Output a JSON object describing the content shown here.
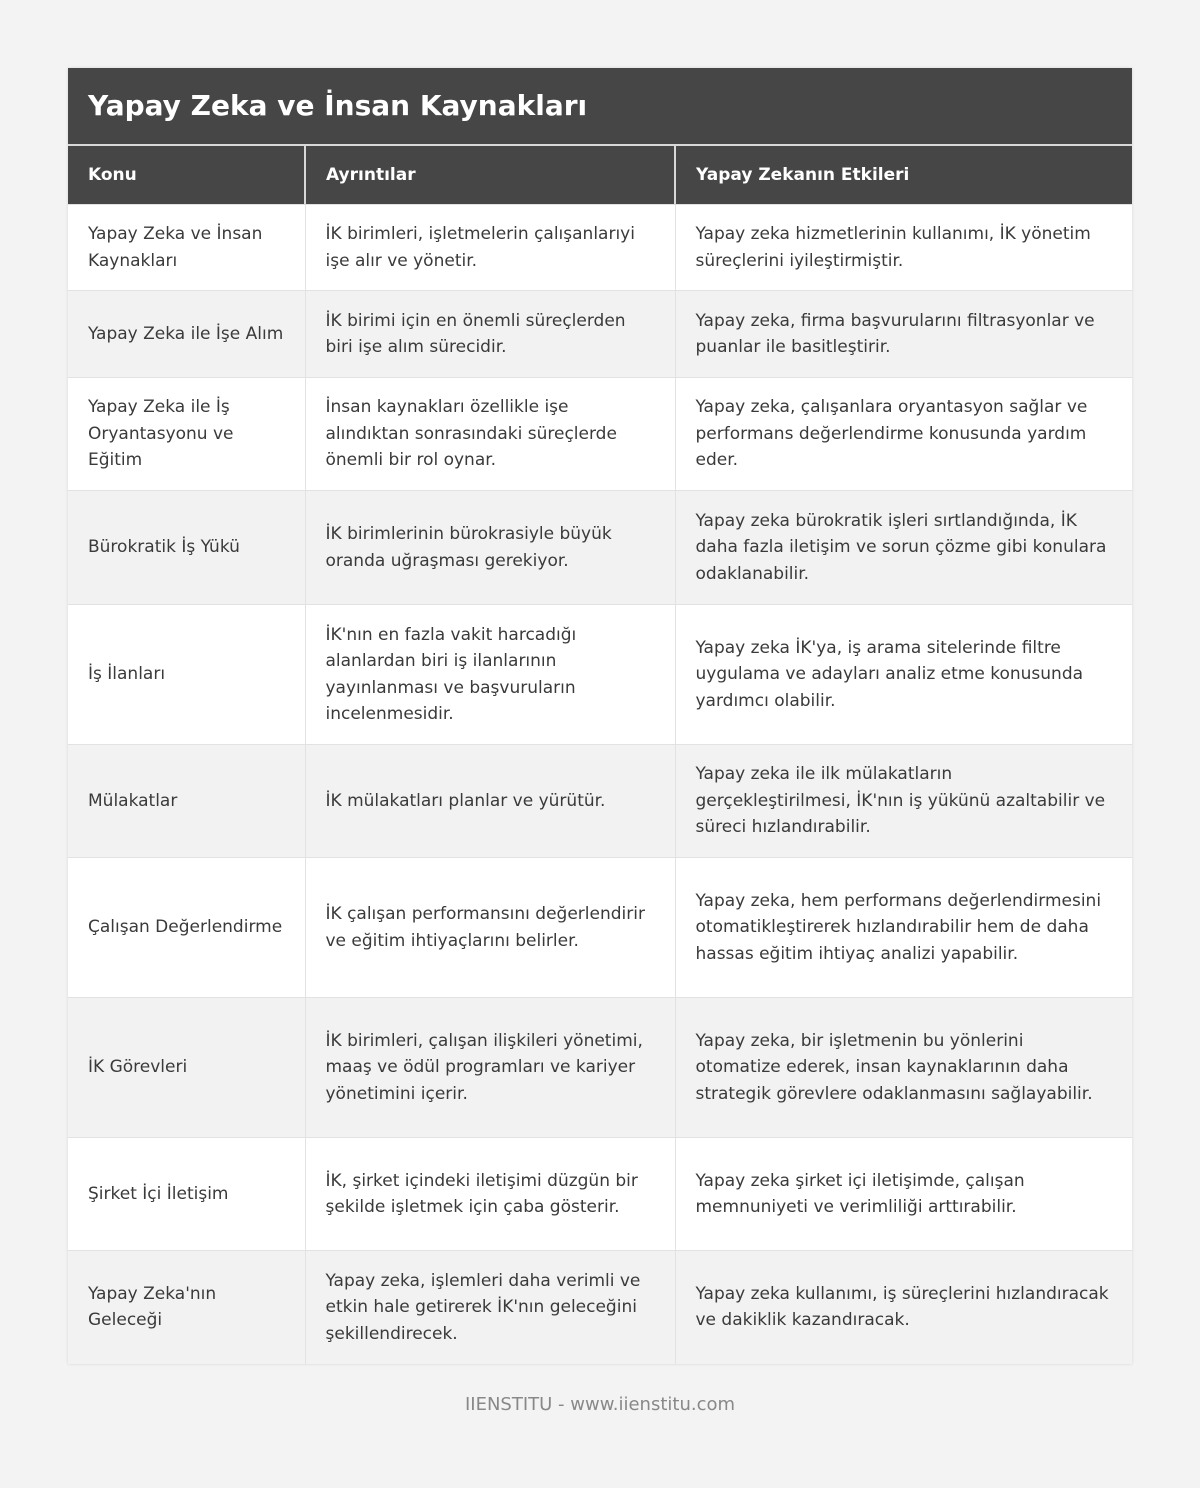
{
  "title": "Yapay Zeka ve İnsan Kaynakları",
  "columns": [
    "Konu",
    "Ayrıntılar",
    "Yapay Zekanın Etkileri"
  ],
  "rows": [
    [
      "Yapay Zeka ve İnsan Kaynakları",
      "İK birimleri, işletmelerin çalışanlarıyi işe alır ve yönetir.",
      "Yapay zeka hizmetlerinin kullanımı, İK yönetim süreçlerini iyileştirmiştir."
    ],
    [
      "Yapay Zeka ile İşe Alım",
      "İK birimi için en önemli süreçlerden biri işe alım sürecidir.",
      "Yapay zeka, firma başvurularını filtrasyonlar ve puanlar ile basitleştirir."
    ],
    [
      "Yapay Zeka ile İş Oryantasyonu ve Eğitim",
      "İnsan kaynakları özellikle işe alındıktan sonrasındaki süreçlerde önemli bir rol oynar.",
      "Yapay zeka, çalışanlara oryantasyon sağlar ve performans değerlendirme konusunda yardım eder."
    ],
    [
      "Bürokratik İş Yükü",
      "İK birimlerinin bürokrasiyle büyük oranda uğraşması gerekiyor.",
      "Yapay zeka bürokratik işleri sırtlandığında, İK daha fazla iletişim ve sorun çözme gibi konulara odaklanabilir."
    ],
    [
      "İş İlanları",
      "İK'nın en fazla vakit harcadığı alanlardan biri iş ilanlarının yayınlanması ve başvuruların incelenmesidir.",
      "Yapay zeka İK'ya, iş arama sitelerinde filtre uygulama ve adayları analiz etme konusunda yardımcı olabilir."
    ],
    [
      "Mülakatlar",
      "İK mülakatları planlar ve yürütür.",
      "Yapay zeka ile ilk mülakatların gerçekleştirilmesi, İK'nın iş yükünü azaltabilir ve süreci hızlandırabilir."
    ],
    [
      "Çalışan Değerlendirme",
      "İK çalışan performansını değerlendirir ve eğitim ihtiyaçlarını belirler.",
      "Yapay zeka, hem performans değerlendirmesini otomatikleştirerek hızlandırabilir hem de daha hassas eğitim ihtiyaç analizi yapabilir."
    ],
    [
      "İK Görevleri",
      "İK birimleri, çalışan ilişkileri yönetimi, maaş ve ödül programları ve kariyer yönetimini içerir.",
      "Yapay zeka, bir işletmenin bu yönlerini otomatize ederek, insan kaynaklarının daha strategik görevlere odaklanmasını sağlayabilir."
    ],
    [
      "Şirket İçi İletişim",
      "İK, şirket içindeki iletişimi düzgün bir şekilde işletmek için çaba gösterir.",
      "Yapay zeka şirket içi iletişimde, çalışan memnuniyeti ve verimliliği arttırabilir."
    ],
    [
      "Yapay Zeka'nın Geleceği",
      "Yapay zeka, işlemleri daha verimli ve etkin hale getirerek İK'nın geleceğini şekillendirecek.",
      "Yapay zeka kullanımı, iş süreçlerini hızlandıracak ve dakiklik kazandıracak."
    ]
  ],
  "footer": "IIENSTITU - www.iienstitu.com"
}
